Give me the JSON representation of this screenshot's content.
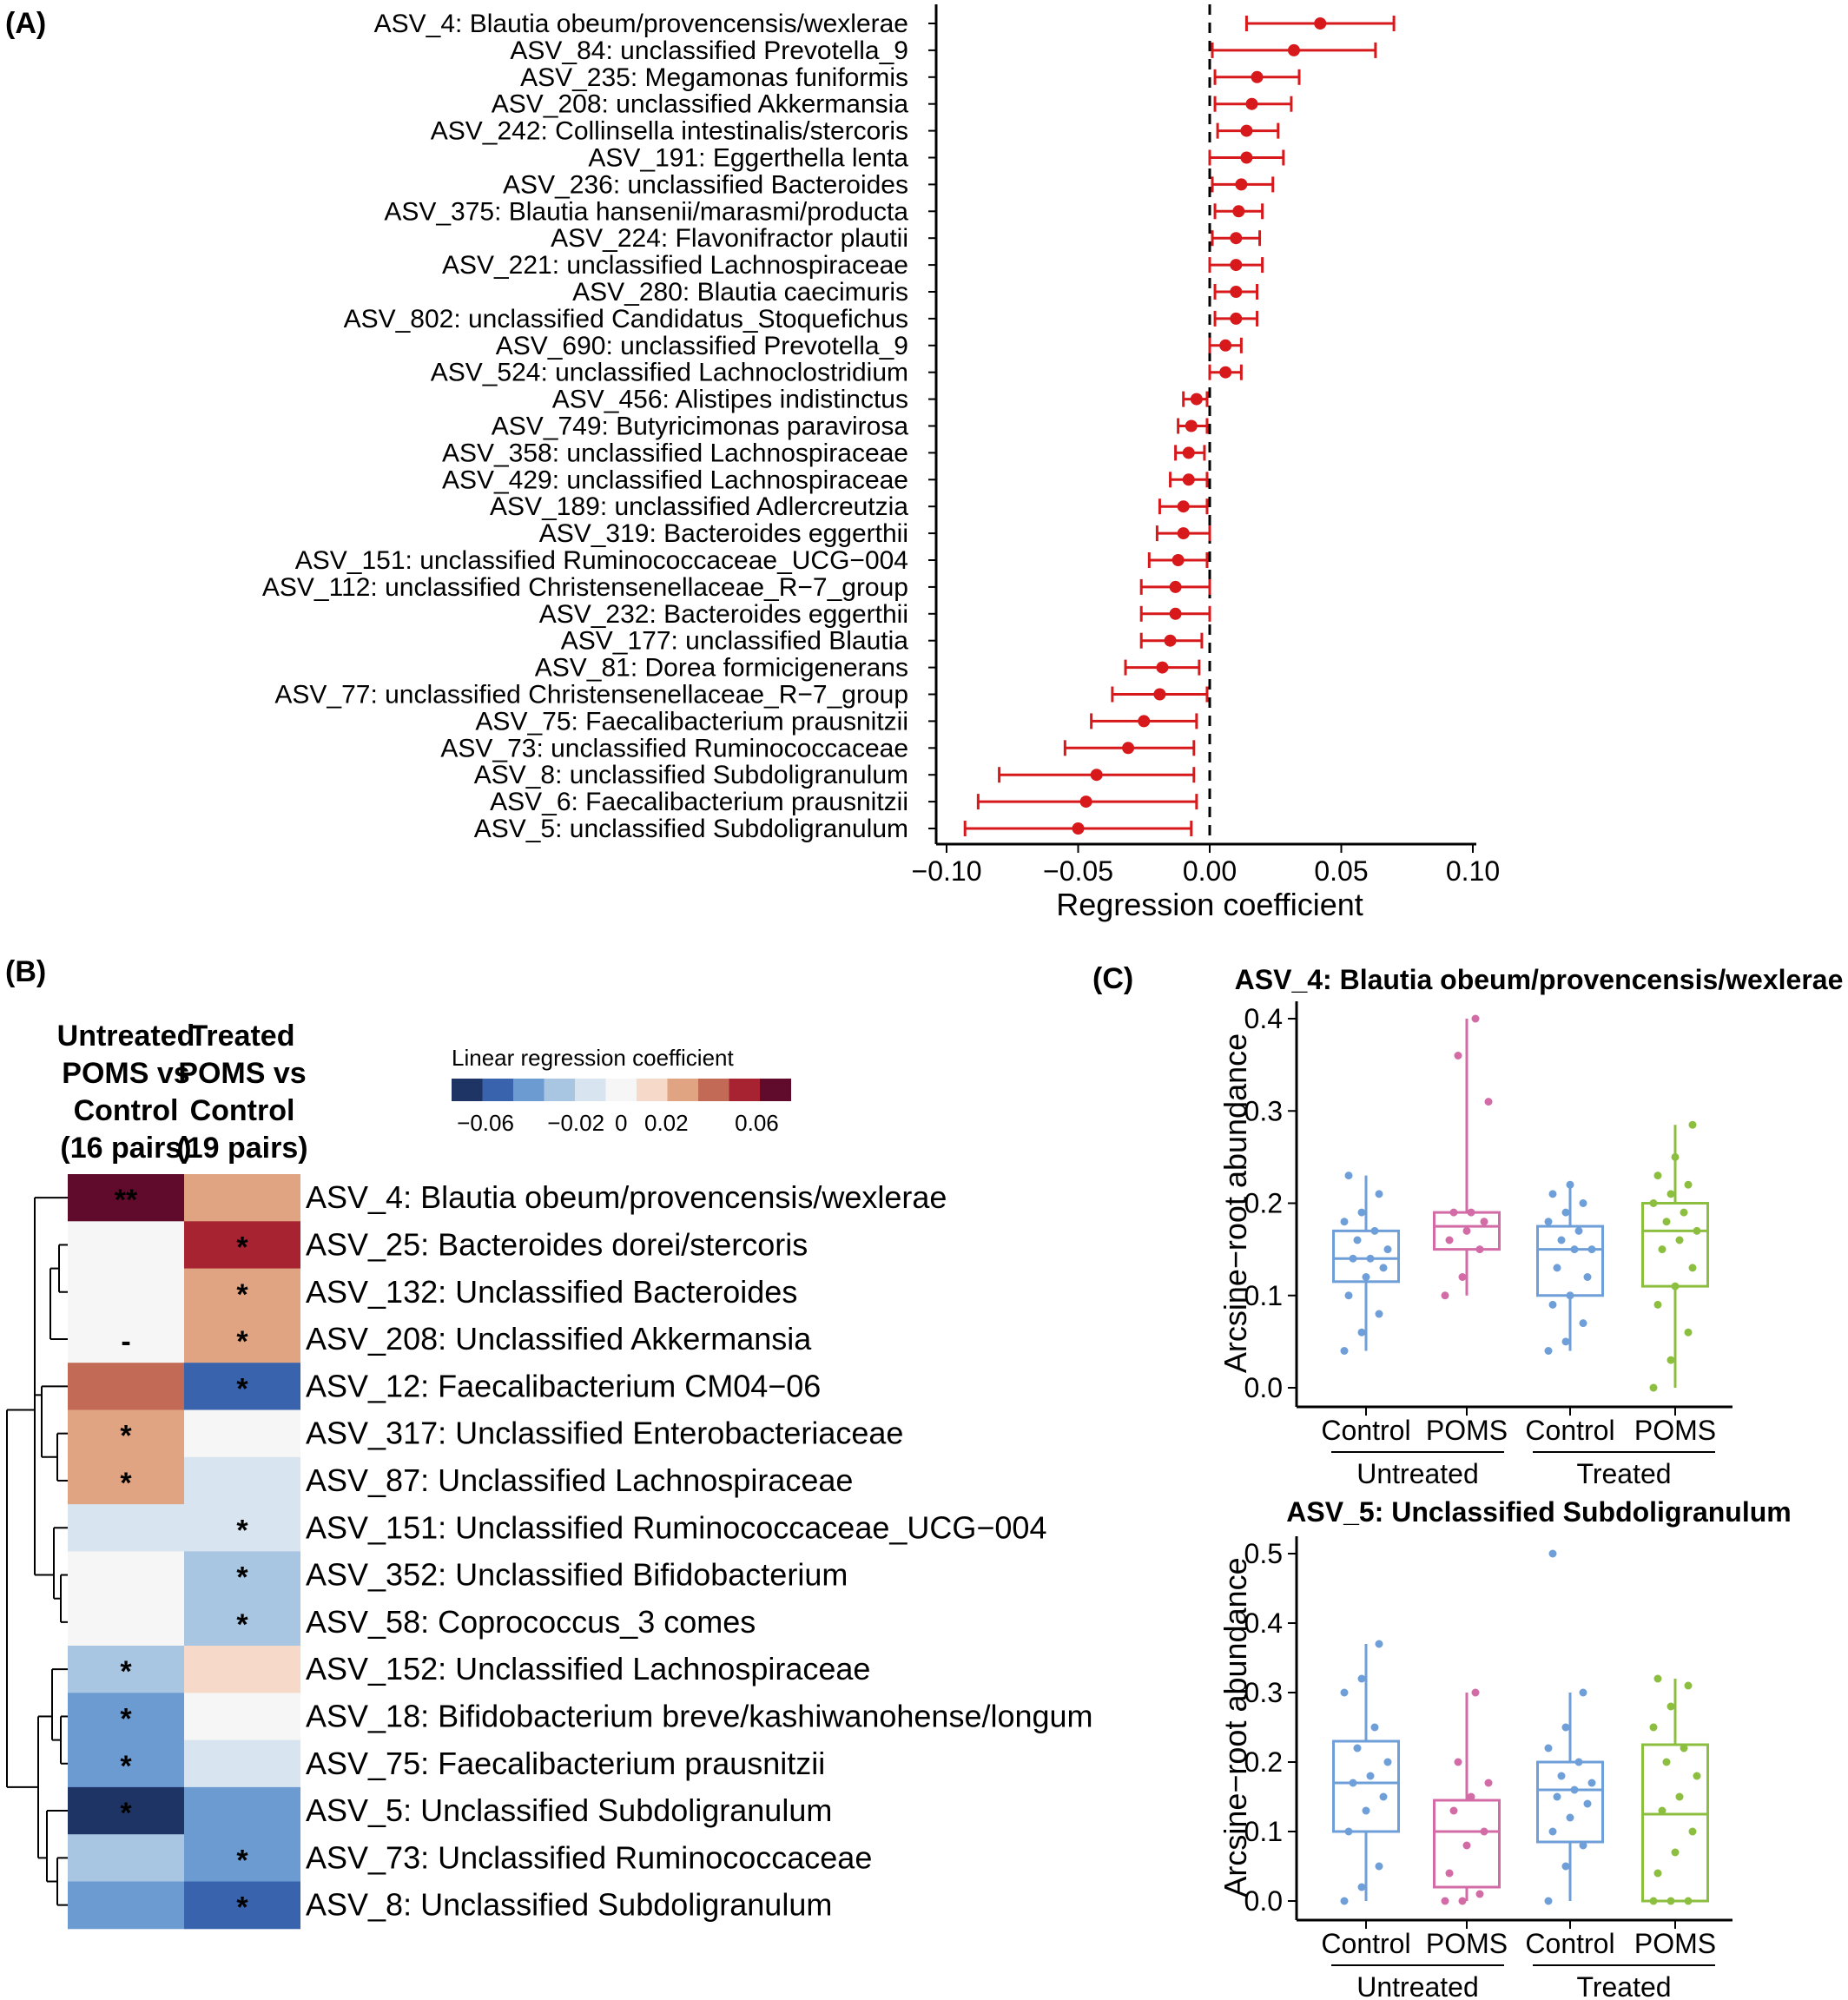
{
  "panel_labels": {
    "a": "(A)",
    "b": "(B)",
    "c": "(C)"
  },
  "colors": {
    "point": "#d7191c",
    "control": "#6f9fd8",
    "poms": "#d36ba6",
    "poms_treated": "#8cbf3f"
  },
  "chart_data": [
    {
      "type": "scatter",
      "subtype": "forest-plot",
      "xlabel": "Regression coefficient",
      "xlim": [
        -0.105,
        0.105
      ],
      "xticks": [
        -0.1,
        -0.05,
        0.0,
        0.05,
        0.1
      ],
      "xtick_labels": [
        "−0.10",
        "−0.05",
        "0.00",
        "0.05",
        "0.10"
      ],
      "reference_line": 0,
      "rows": [
        {
          "label": "ASV_4: Blautia obeum/provencensis/wexlerae",
          "coef": 0.042,
          "lo": 0.014,
          "hi": 0.07
        },
        {
          "label": "ASV_84: unclassified Prevotella_9",
          "coef": 0.032,
          "lo": 0.001,
          "hi": 0.063
        },
        {
          "label": "ASV_235: Megamonas funiformis",
          "coef": 0.018,
          "lo": 0.002,
          "hi": 0.034
        },
        {
          "label": "ASV_208: unclassified Akkermansia",
          "coef": 0.016,
          "lo": 0.002,
          "hi": 0.031
        },
        {
          "label": "ASV_242: Collinsella intestinalis/stercoris",
          "coef": 0.014,
          "lo": 0.003,
          "hi": 0.026
        },
        {
          "label": "ASV_191: Eggerthella lenta",
          "coef": 0.014,
          "lo": 0.0,
          "hi": 0.028
        },
        {
          "label": "ASV_236: unclassified Bacteroides",
          "coef": 0.012,
          "lo": 0.001,
          "hi": 0.024
        },
        {
          "label": "ASV_375: Blautia hansenii/marasmi/producta",
          "coef": 0.011,
          "lo": 0.002,
          "hi": 0.02
        },
        {
          "label": "ASV_224: Flavonifractor plautii",
          "coef": 0.01,
          "lo": 0.001,
          "hi": 0.019
        },
        {
          "label": "ASV_221: unclassified Lachnospiraceae",
          "coef": 0.01,
          "lo": 0.0,
          "hi": 0.02
        },
        {
          "label": "ASV_280: Blautia caecimuris",
          "coef": 0.01,
          "lo": 0.002,
          "hi": 0.018
        },
        {
          "label": "ASV_802: unclassified Candidatus_Stoquefichus",
          "coef": 0.01,
          "lo": 0.002,
          "hi": 0.018
        },
        {
          "label": "ASV_690: unclassified Prevotella_9",
          "coef": 0.006,
          "lo": 0.0,
          "hi": 0.012
        },
        {
          "label": "ASV_524: unclassified Lachnoclostridium",
          "coef": 0.006,
          "lo": 0.0,
          "hi": 0.012
        },
        {
          "label": "ASV_456: Alistipes indistinctus",
          "coef": -0.005,
          "lo": -0.01,
          "hi": -0.001
        },
        {
          "label": "ASV_749: Butyricimonas paravirosa",
          "coef": -0.007,
          "lo": -0.012,
          "hi": -0.001
        },
        {
          "label": "ASV_358: unclassified Lachnospiraceae",
          "coef": -0.008,
          "lo": -0.013,
          "hi": -0.002
        },
        {
          "label": "ASV_429: unclassified Lachnospiraceae",
          "coef": -0.008,
          "lo": -0.015,
          "hi": -0.001
        },
        {
          "label": "ASV_189: unclassified Adlercreutzia",
          "coef": -0.01,
          "lo": -0.019,
          "hi": -0.001
        },
        {
          "label": "ASV_319: Bacteroides eggerthii",
          "coef": -0.01,
          "lo": -0.02,
          "hi": 0.0
        },
        {
          "label": "ASV_151: unclassified Ruminococcaceae_UCG−004",
          "coef": -0.012,
          "lo": -0.023,
          "hi": -0.001
        },
        {
          "label": "ASV_112: unclassified Christensenellaceae_R−7_group",
          "coef": -0.013,
          "lo": -0.026,
          "hi": 0.0
        },
        {
          "label": "ASV_232: Bacteroides eggerthii",
          "coef": -0.013,
          "lo": -0.026,
          "hi": 0.0
        },
        {
          "label": "ASV_177: unclassified Blautia",
          "coef": -0.015,
          "lo": -0.026,
          "hi": -0.003
        },
        {
          "label": "ASV_81: Dorea formicigenerans",
          "coef": -0.018,
          "lo": -0.032,
          "hi": -0.004
        },
        {
          "label": "ASV_77: unclassified Christensenellaceae_R−7_group",
          "coef": -0.019,
          "lo": -0.037,
          "hi": -0.001
        },
        {
          "label": "ASV_75: Faecalibacterium prausnitzii",
          "coef": -0.025,
          "lo": -0.045,
          "hi": -0.005
        },
        {
          "label": "ASV_73: unclassified Ruminococcaceae",
          "coef": -0.031,
          "lo": -0.055,
          "hi": -0.006
        },
        {
          "label": "ASV_8: unclassified Subdoligranulum",
          "coef": -0.043,
          "lo": -0.08,
          "hi": -0.006
        },
        {
          "label": "ASV_6: Faecalibacterium prausnitzii",
          "coef": -0.047,
          "lo": -0.088,
          "hi": -0.005
        },
        {
          "label": "ASV_5: unclassified Subdoligranulum",
          "coef": -0.05,
          "lo": -0.093,
          "hi": -0.007
        }
      ]
    },
    {
      "type": "heatmap",
      "columns": [
        [
          "Untreated",
          "POMS vs",
          "Control",
          "(16 pairs)"
        ],
        [
          "Treated",
          "POMS vs",
          "Control",
          "(19 pairs)"
        ]
      ],
      "legend_title": "Linear regression coefficient",
      "legend_labels": [
        "−0.06",
        "−0.02",
        "0",
        "0.02",
        "0.06"
      ],
      "legend_colors": [
        "#1e3464",
        "#3a63ad",
        "#6b9bd1",
        "#a8c6e2",
        "#d8e5f1",
        "#f6f6f6",
        "#f7d9c9",
        "#e0a482",
        "#c26a56",
        "#a72332",
        "#600a2c"
      ],
      "rows": [
        {
          "label": "ASV_4: Blautia obeum/provencensis/wexlerae",
          "values": [
            0.06,
            0.025
          ],
          "marks": [
            "**",
            ""
          ]
        },
        {
          "label": "ASV_25: Bacteroides dorei/stercoris",
          "values": [
            0,
            0.05
          ],
          "marks": [
            "",
            "*"
          ]
        },
        {
          "label": "ASV_132: Unclassified Bacteroides",
          "values": [
            0,
            0.025
          ],
          "marks": [
            "",
            "*"
          ]
        },
        {
          "label": "ASV_208: Unclassified Akkermansia",
          "values": [
            0,
            0.025
          ],
          "marks": [
            "-",
            "*"
          ]
        },
        {
          "label": "ASV_12: Faecalibacterium CM04−06",
          "values": [
            0.035,
            -0.045
          ],
          "marks": [
            "",
            "*"
          ]
        },
        {
          "label": "ASV_317: Unclassified Enterobacteriaceae",
          "values": [
            0.025,
            0
          ],
          "marks": [
            "*",
            ""
          ]
        },
        {
          "label": "ASV_87: Unclassified Lachnospiraceae",
          "values": [
            0.025,
            -0.01
          ],
          "marks": [
            "*",
            ""
          ]
        },
        {
          "label": "ASV_151: Unclassified Ruminococcaceae_UCG−004",
          "values": [
            -0.01,
            -0.01
          ],
          "marks": [
            "",
            "*"
          ]
        },
        {
          "label": "ASV_352: Unclassified Bifidobacterium",
          "values": [
            0,
            -0.02
          ],
          "marks": [
            "",
            "*"
          ]
        },
        {
          "label": "ASV_58: Coprococcus_3 comes",
          "values": [
            0,
            -0.02
          ],
          "marks": [
            "",
            "*"
          ]
        },
        {
          "label": "ASV_152: Unclassified Lachnospiraceae",
          "values": [
            -0.02,
            0.01
          ],
          "marks": [
            "*",
            ""
          ]
        },
        {
          "label": "ASV_18: Bifidobacterium breve/kashiwanohense/longum",
          "values": [
            -0.035,
            0
          ],
          "marks": [
            "*",
            ""
          ]
        },
        {
          "label": "ASV_75: Faecalibacterium prausnitzii",
          "values": [
            -0.035,
            -0.01
          ],
          "marks": [
            "*",
            ""
          ]
        },
        {
          "label": "ASV_5: Unclassified Subdoligranulum",
          "values": [
            -0.06,
            -0.035
          ],
          "marks": [
            "*",
            ""
          ]
        },
        {
          "label": "ASV_73: Unclassified Ruminococcaceae",
          "values": [
            -0.02,
            -0.035
          ],
          "marks": [
            "",
            "*"
          ]
        },
        {
          "label": "ASV_8: Unclassified Subdoligranulum",
          "values": [
            -0.035,
            -0.045
          ],
          "marks": [
            "",
            "*"
          ]
        }
      ]
    },
    {
      "type": "box",
      "title": "ASV_4: Blautia obeum/provencensis/wexlerae",
      "ylabel": "Arcsine−root abundance",
      "ylim": [
        0,
        0.4
      ],
      "yticks": [
        0.0,
        0.1,
        0.2,
        0.3,
        0.4
      ],
      "ytick_labels": [
        "0.0",
        "0.1",
        "0.2",
        "0.3",
        "0.4"
      ],
      "groups": [
        "Untreated",
        "Treated"
      ],
      "boxes": [
        {
          "category": "Control",
          "group": "Untreated",
          "min": 0.04,
          "q1": 0.115,
          "median": 0.14,
          "q3": 0.17,
          "max": 0.23,
          "points": [
            0.04,
            0.06,
            0.08,
            0.1,
            0.12,
            0.13,
            0.14,
            0.14,
            0.15,
            0.16,
            0.17,
            0.18,
            0.19,
            0.21,
            0.23
          ]
        },
        {
          "category": "POMS",
          "group": "Untreated",
          "min": 0.1,
          "q1": 0.15,
          "median": 0.175,
          "q3": 0.19,
          "max": 0.4,
          "points": [
            0.1,
            0.12,
            0.15,
            0.16,
            0.17,
            0.18,
            0.19,
            0.19,
            0.31,
            0.36,
            0.4
          ]
        },
        {
          "category": "Control",
          "group": "Treated",
          "min": 0.04,
          "q1": 0.1,
          "median": 0.15,
          "q3": 0.175,
          "max": 0.22,
          "points": [
            0.04,
            0.05,
            0.07,
            0.09,
            0.1,
            0.12,
            0.13,
            0.15,
            0.15,
            0.16,
            0.17,
            0.18,
            0.19,
            0.2,
            0.21,
            0.22
          ]
        },
        {
          "category": "POMS",
          "group": "Treated",
          "min": 0.0,
          "q1": 0.11,
          "median": 0.17,
          "q3": 0.2,
          "max": 0.285,
          "points": [
            0.0,
            0.03,
            0.06,
            0.09,
            0.11,
            0.13,
            0.15,
            0.16,
            0.17,
            0.18,
            0.19,
            0.2,
            0.21,
            0.22,
            0.23,
            0.25,
            0.285
          ]
        }
      ]
    },
    {
      "type": "box",
      "title": "ASV_5: Unclassified Subdoligranulum",
      "ylabel": "Arcsine−root abundance",
      "ylim": [
        0,
        0.5
      ],
      "yticks": [
        0.0,
        0.1,
        0.2,
        0.3,
        0.4,
        0.5
      ],
      "ytick_labels": [
        "0.0",
        "0.1",
        "0.2",
        "0.3",
        "0.4",
        "0.5"
      ],
      "groups": [
        "Untreated",
        "Treated"
      ],
      "boxes": [
        {
          "category": "Control",
          "group": "Untreated",
          "min": 0.0,
          "q1": 0.1,
          "median": 0.17,
          "q3": 0.23,
          "max": 0.37,
          "points": [
            0.0,
            0.02,
            0.05,
            0.1,
            0.13,
            0.15,
            0.17,
            0.18,
            0.2,
            0.22,
            0.25,
            0.3,
            0.32,
            0.37
          ]
        },
        {
          "category": "POMS",
          "group": "Untreated",
          "min": 0.0,
          "q1": 0.02,
          "median": 0.1,
          "q3": 0.145,
          "max": 0.3,
          "points": [
            0.0,
            0.0,
            0.01,
            0.04,
            0.08,
            0.1,
            0.13,
            0.15,
            0.17,
            0.2,
            0.3
          ]
        },
        {
          "category": "Control",
          "group": "Treated",
          "min": 0.0,
          "q1": 0.085,
          "median": 0.16,
          "q3": 0.2,
          "max": 0.3,
          "points": [
            0.0,
            0.05,
            0.08,
            0.1,
            0.12,
            0.14,
            0.15,
            0.16,
            0.17,
            0.18,
            0.2,
            0.22,
            0.25,
            0.3,
            0.5
          ]
        },
        {
          "category": "POMS",
          "group": "Treated",
          "min": 0.0,
          "q1": 0.0,
          "median": 0.125,
          "q3": 0.225,
          "max": 0.32,
          "points": [
            0.0,
            0.0,
            0.0,
            0.04,
            0.07,
            0.1,
            0.13,
            0.15,
            0.18,
            0.2,
            0.22,
            0.25,
            0.28,
            0.31,
            0.32
          ]
        }
      ]
    }
  ]
}
